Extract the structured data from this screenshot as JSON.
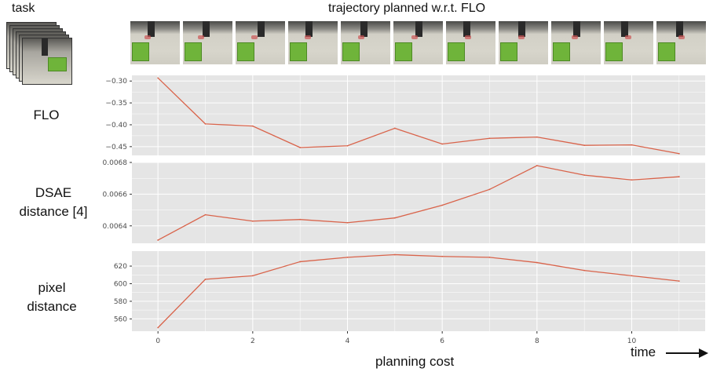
{
  "header": {
    "task_label": "task",
    "trajectory_label": "trajectory planned w.r.t. FLO"
  },
  "rows": [
    {
      "label_lines": [
        "FLO"
      ]
    },
    {
      "label_lines": [
        "DSAE",
        "distance [4]"
      ]
    },
    {
      "label_lines": [
        "pixel",
        "distance"
      ]
    }
  ],
  "footer": {
    "xlabel": "planning cost",
    "time_label": "time"
  },
  "colors": {
    "panel_bg": "#e5e5e5",
    "grid": "#ffffff",
    "line": "#d9634a",
    "tick_text": "#4d4d4d"
  },
  "thumbnails": {
    "count": 11,
    "icon": "robot-scene-frame"
  },
  "chart_data": [
    {
      "type": "line",
      "title": "",
      "xlabel": "",
      "ylabel": "",
      "x": [
        0,
        1,
        2,
        3,
        4,
        5,
        6,
        7,
        8,
        9,
        10,
        11
      ],
      "series": [
        {
          "values": [
            -0.293,
            -0.398,
            -0.403,
            -0.452,
            -0.448,
            -0.408,
            -0.444,
            -0.431,
            -0.428,
            -0.447,
            -0.446,
            -0.466
          ]
        }
      ],
      "xlim": [
        -0.55,
        11.55
      ],
      "ylim": [
        -0.47,
        -0.287
      ],
      "yticks": [
        -0.3,
        -0.35,
        -0.4,
        -0.45
      ],
      "ytick_labels": [
        "−0.30",
        "−0.35",
        "−0.40",
        "−0.45"
      ],
      "xticks": [],
      "xtick_labels": [],
      "grid": true
    },
    {
      "type": "line",
      "title": "",
      "xlabel": "",
      "ylabel": "",
      "x": [
        0,
        1,
        2,
        3,
        4,
        5,
        6,
        7,
        8,
        9,
        10,
        11
      ],
      "series": [
        {
          "values": [
            0.00631,
            0.00647,
            0.00643,
            0.00644,
            0.00642,
            0.00645,
            0.00653,
            0.00663,
            0.00678,
            0.00672,
            0.00669,
            0.00671
          ]
        }
      ],
      "xlim": [
        -0.55,
        11.55
      ],
      "ylim": [
        0.00629,
        0.0068
      ],
      "yticks": [
        0.0064,
        0.0066,
        0.0068
      ],
      "ytick_labels": [
        "0.0064",
        "0.0066",
        "0.0068"
      ],
      "xticks": [],
      "xtick_labels": [],
      "grid": true
    },
    {
      "type": "line",
      "title": "",
      "xlabel": "planning cost",
      "ylabel": "",
      "x": [
        0,
        1,
        2,
        3,
        4,
        5,
        6,
        7,
        8,
        9,
        10,
        11
      ],
      "series": [
        {
          "values": [
            550,
            605,
            609,
            625,
            630,
            633,
            631,
            630,
            624,
            615,
            609,
            603
          ]
        }
      ],
      "xlim": [
        -0.55,
        11.55
      ],
      "ylim": [
        546,
        637
      ],
      "yticks": [
        560,
        580,
        600,
        620
      ],
      "ytick_labels": [
        "560",
        "580",
        "600",
        "620"
      ],
      "xticks": [
        0,
        2,
        4,
        6,
        8,
        10
      ],
      "xtick_labels": [
        "0",
        "2",
        "4",
        "6",
        "8",
        "10"
      ],
      "grid": true
    }
  ]
}
